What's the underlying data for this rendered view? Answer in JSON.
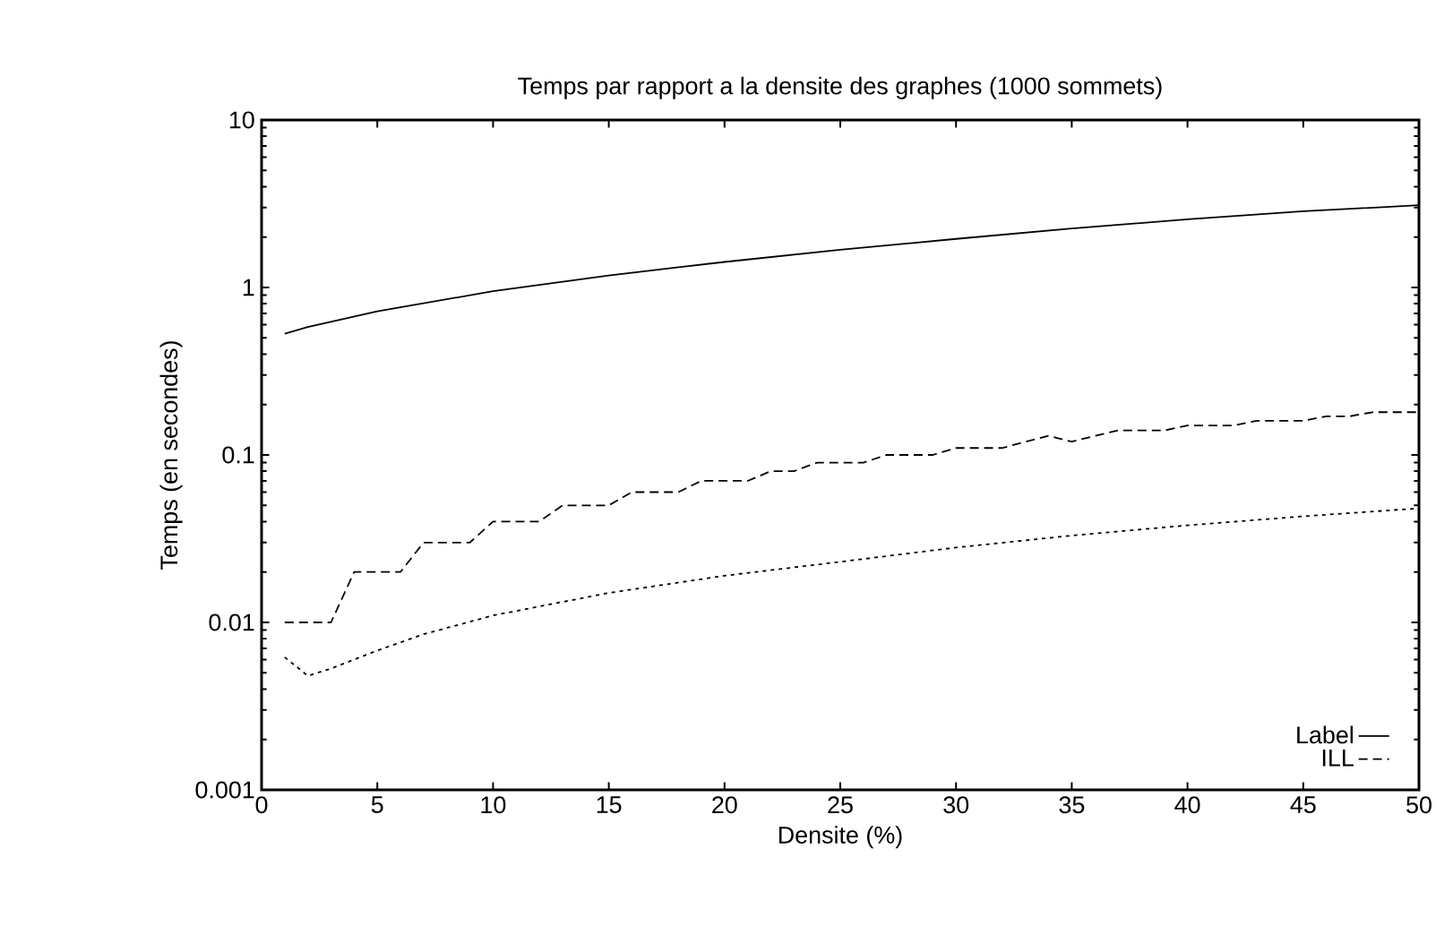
{
  "chart_data": {
    "type": "line",
    "title": "Temps par rapport a la densite des graphes (1000 sommets)",
    "xlabel": "Densite (%)",
    "ylabel": "Temps (en secondes)",
    "log": "y",
    "grid": false,
    "legend": "bottom right",
    "marker": "none",
    "xlim": [
      0,
      50
    ],
    "xticks": [
      0,
      5,
      10,
      15,
      20,
      25,
      30,
      35,
      40,
      45,
      50
    ],
    "ylim": [
      0.001,
      10
    ],
    "yticks": [
      0.001,
      0.01,
      0.1,
      1,
      10
    ],
    "series": [
      {
        "name": "Label",
        "color": "#000000",
        "line_style": "solid",
        "x": [
          1,
          2,
          5,
          10,
          15,
          20,
          25,
          30,
          35,
          40,
          45,
          50
        ],
        "values": [
          0.53,
          0.58,
          0.72,
          0.95,
          1.18,
          1.42,
          1.68,
          1.95,
          2.25,
          2.55,
          2.85,
          3.1
        ]
      },
      {
        "name": "ILL",
        "color": "#000000",
        "line_style": "dashed",
        "x": [
          1,
          2,
          3,
          4,
          5,
          6,
          7,
          8,
          9,
          10,
          11,
          12,
          13,
          14,
          15,
          16,
          17,
          18,
          19,
          20,
          21,
          22,
          23,
          24,
          25,
          26,
          27,
          28,
          29,
          30,
          31,
          32,
          33,
          34,
          35,
          36,
          37,
          38,
          39,
          40,
          41,
          42,
          43,
          44,
          45,
          46,
          47,
          48,
          49,
          50
        ],
        "values": [
          0.01,
          0.01,
          0.01,
          0.02,
          0.02,
          0.02,
          0.03,
          0.03,
          0.03,
          0.04,
          0.04,
          0.04,
          0.05,
          0.05,
          0.05,
          0.06,
          0.06,
          0.06,
          0.07,
          0.07,
          0.07,
          0.08,
          0.08,
          0.09,
          0.09,
          0.09,
          0.1,
          0.1,
          0.1,
          0.11,
          0.11,
          0.11,
          0.12,
          0.13,
          0.12,
          0.13,
          0.14,
          0.14,
          0.14,
          0.15,
          0.15,
          0.15,
          0.16,
          0.16,
          0.16,
          0.17,
          0.17,
          0.18,
          0.18,
          0.18
        ]
      },
      {
        "color": "#000000",
        "line_style": "dotted",
        "x": [
          1,
          2,
          3,
          5,
          7,
          10,
          15,
          20,
          25,
          30,
          35,
          40,
          45,
          50
        ],
        "values": [
          0.0062,
          0.0048,
          0.0053,
          0.0068,
          0.0085,
          0.011,
          0.015,
          0.019,
          0.023,
          0.028,
          0.033,
          0.038,
          0.043,
          0.048
        ]
      }
    ]
  }
}
